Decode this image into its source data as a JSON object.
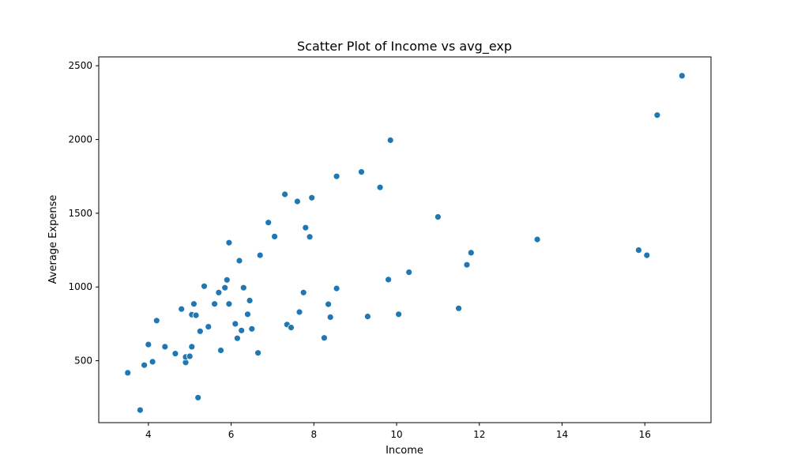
{
  "chart_data": {
    "type": "scatter",
    "title": "Scatter Plot of Income vs avg_exp",
    "xlabel": "Income",
    "ylabel": "Average Expense",
    "xlim": [
      2.8,
      17.6
    ],
    "ylim": [
      80,
      2560
    ],
    "xticks": [
      4,
      6,
      8,
      10,
      12,
      14,
      16
    ],
    "yticks": [
      500,
      1000,
      1500,
      2000,
      2500
    ],
    "grid": false,
    "point_color": "#1f77b4",
    "point_edge_color": "#ffffff",
    "points": [
      [
        3.5,
        418
      ],
      [
        3.8,
        165
      ],
      [
        3.9,
        470
      ],
      [
        4.0,
        610
      ],
      [
        4.1,
        493
      ],
      [
        4.2,
        772
      ],
      [
        4.4,
        595
      ],
      [
        4.65,
        548
      ],
      [
        4.8,
        850
      ],
      [
        4.9,
        488
      ],
      [
        4.9,
        525
      ],
      [
        5.0,
        530
      ],
      [
        5.05,
        812
      ],
      [
        5.05,
        595
      ],
      [
        5.1,
        885
      ],
      [
        5.15,
        808
      ],
      [
        5.2,
        250
      ],
      [
        5.25,
        700
      ],
      [
        5.35,
        1005
      ],
      [
        5.45,
        730
      ],
      [
        5.6,
        885
      ],
      [
        5.7,
        962
      ],
      [
        5.75,
        570
      ],
      [
        5.85,
        995
      ],
      [
        5.9,
        1048
      ],
      [
        5.95,
        885
      ],
      [
        5.95,
        1300
      ],
      [
        6.1,
        750
      ],
      [
        6.15,
        652
      ],
      [
        6.2,
        1178
      ],
      [
        6.25,
        705
      ],
      [
        6.3,
        995
      ],
      [
        6.4,
        815
      ],
      [
        6.45,
        908
      ],
      [
        6.5,
        716
      ],
      [
        6.65,
        553
      ],
      [
        6.7,
        1215
      ],
      [
        6.9,
        1437
      ],
      [
        7.05,
        1342
      ],
      [
        7.3,
        1628
      ],
      [
        7.35,
        745
      ],
      [
        7.45,
        725
      ],
      [
        7.6,
        1580
      ],
      [
        7.65,
        830
      ],
      [
        7.75,
        962
      ],
      [
        7.8,
        1402
      ],
      [
        7.9,
        1340
      ],
      [
        7.95,
        1605
      ],
      [
        8.25,
        655
      ],
      [
        8.35,
        883
      ],
      [
        8.4,
        795
      ],
      [
        8.55,
        990
      ],
      [
        8.55,
        1750
      ],
      [
        9.15,
        1780
      ],
      [
        9.3,
        800
      ],
      [
        9.6,
        1675
      ],
      [
        9.8,
        1050
      ],
      [
        9.85,
        1995
      ],
      [
        10.05,
        815
      ],
      [
        10.3,
        1100
      ],
      [
        11.0,
        1475
      ],
      [
        11.5,
        855
      ],
      [
        11.7,
        1150
      ],
      [
        11.8,
        1232
      ],
      [
        13.4,
        1322
      ],
      [
        15.85,
        1250
      ],
      [
        16.05,
        1215
      ],
      [
        16.3,
        2165
      ],
      [
        16.9,
        2432
      ]
    ]
  }
}
